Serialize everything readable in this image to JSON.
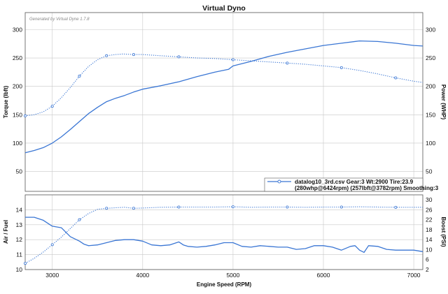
{
  "title": "Virtual Dyno",
  "watermark": "Generated by Virtual Dyne 1.7.8",
  "colors": {
    "series": "#3a76d4",
    "grid": "#c8c8c8",
    "frame": "#555555"
  },
  "chart_data": [
    {
      "type": "line",
      "xlabel": "",
      "ylabel": "Torque (lbft)",
      "y2label": "Power (WHP)",
      "xlim": [
        2700,
        7100
      ],
      "ylim": [
        15,
        330
      ],
      "y2lim": [
        15,
        330
      ],
      "yticks": [
        "50",
        "100",
        "150",
        "200",
        "250",
        "300"
      ],
      "y2ticks": [
        "50",
        "100",
        "150",
        "200",
        "250",
        "300"
      ],
      "grid": true,
      "legend": {
        "placement": "bottom-right",
        "line1": "datalog10_3rd.csv Gear:3 Wt:2900 Tire:23.9",
        "line2": "(280whp@6424rpm) (257lbft@3782rpm) Smoothing:3"
      },
      "series": [
        {
          "role": "power",
          "style": "solid",
          "x": [
            2700,
            2800,
            2900,
            3000,
            3100,
            3200,
            3300,
            3400,
            3500,
            3600,
            3700,
            3800,
            3900,
            4000,
            4200,
            4400,
            4600,
            4800,
            4950,
            5000,
            5200,
            5400,
            5600,
            5800,
            6000,
            6200,
            6400,
            6600,
            6800,
            7000,
            7100
          ],
          "y": [
            83,
            87,
            92,
            100,
            111,
            124,
            138,
            152,
            163,
            173,
            179,
            184,
            190,
            195,
            201,
            208,
            217,
            225,
            230,
            236,
            244,
            253,
            260,
            266,
            272,
            276,
            280,
            279,
            276,
            272,
            271
          ]
        },
        {
          "role": "torque",
          "style": "dotted",
          "x": [
            2700,
            2800,
            2900,
            3000,
            3100,
            3200,
            3300,
            3400,
            3500,
            3600,
            3700,
            3782,
            3900,
            4000,
            4200,
            4400,
            4600,
            4800,
            5000,
            5200,
            5400,
            5600,
            5800,
            6000,
            6200,
            6400,
            6600,
            6800,
            7000,
            7100
          ],
          "y": [
            148,
            150,
            155,
            165,
            180,
            198,
            218,
            235,
            247,
            254,
            256,
            257,
            256,
            256,
            254,
            252,
            250,
            249,
            247,
            245,
            243,
            241,
            239,
            236,
            233,
            228,
            222,
            215,
            209,
            207
          ]
        }
      ]
    },
    {
      "type": "line",
      "xlabel": "Engine Speed (RPM)",
      "ylabel": "Air / Fuel",
      "y2label": "Boost (PSI)",
      "xlim": [
        2700,
        7100
      ],
      "ylim": [
        10,
        15
      ],
      "y2lim": [
        2,
        32
      ],
      "xticks": [
        "3000",
        "4000",
        "5000",
        "6000",
        "7000"
      ],
      "yticks": [
        "10",
        "11",
        "12",
        "13",
        "14"
      ],
      "y2ticks": [
        "2",
        "6",
        "10",
        "14",
        "18",
        "22",
        "26",
        "30"
      ],
      "grid": true,
      "series": [
        {
          "role": "air-fuel",
          "style": "solid",
          "x": [
            2700,
            2800,
            2900,
            3000,
            3050,
            3100,
            3200,
            3300,
            3350,
            3400,
            3500,
            3600,
            3700,
            3800,
            3900,
            4000,
            4100,
            4200,
            4300,
            4400,
            4450,
            4500,
            4600,
            4700,
            4800,
            4900,
            5000,
            5100,
            5200,
            5300,
            5400,
            5500,
            5600,
            5700,
            5800,
            5900,
            6000,
            6100,
            6200,
            6300,
            6350,
            6400,
            6450,
            6500,
            6600,
            6700,
            6800,
            7000,
            7100
          ],
          "y": [
            13.5,
            13.5,
            13.3,
            12.9,
            12.85,
            12.8,
            12.2,
            11.9,
            11.7,
            11.6,
            11.65,
            11.8,
            11.95,
            12.0,
            12.0,
            11.9,
            11.65,
            11.6,
            11.65,
            11.85,
            11.65,
            11.55,
            11.5,
            11.55,
            11.65,
            11.8,
            11.8,
            11.55,
            11.5,
            11.6,
            11.55,
            11.5,
            11.5,
            11.35,
            11.4,
            11.6,
            11.6,
            11.5,
            11.3,
            11.55,
            11.6,
            11.3,
            11.15,
            11.6,
            11.55,
            11.35,
            11.3,
            11.3,
            11.2
          ]
        },
        {
          "role": "boost",
          "style": "dotted",
          "x": [
            2700,
            2800,
            2900,
            3000,
            3100,
            3200,
            3300,
            3400,
            3500,
            3600,
            3700,
            3800,
            3900,
            4000,
            4200,
            4400,
            4600,
            4800,
            5000,
            5200,
            5400,
            5600,
            5800,
            6000,
            6200,
            6400,
            6600,
            6800,
            7000,
            7100
          ],
          "y": [
            4.5,
            6.5,
            9,
            12,
            15,
            18.5,
            22,
            24.5,
            26.2,
            26.6,
            26.8,
            27,
            26.6,
            26.7,
            27,
            27.1,
            27.1,
            27.1,
            27.2,
            27.0,
            27.1,
            27.1,
            27.0,
            27.1,
            27.1,
            27.2,
            27.1,
            27.0,
            27.0,
            27.0
          ]
        }
      ]
    }
  ]
}
